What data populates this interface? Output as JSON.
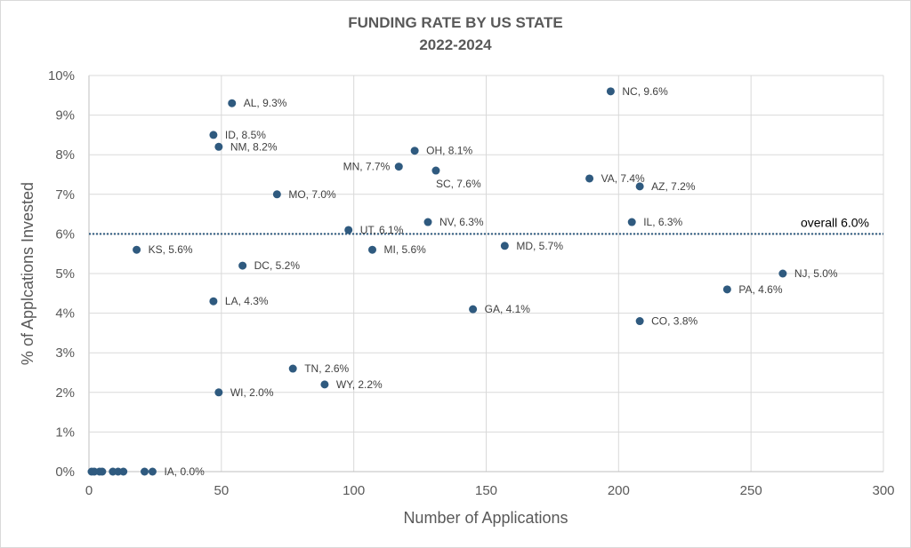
{
  "chart_data": {
    "type": "scatter",
    "title": "FUNDING RATE BY US STATE",
    "subtitle": "2022-2024",
    "xlabel": "Number of Applications",
    "ylabel": "% of Applcations Invested",
    "xlim": [
      0,
      300
    ],
    "ylim": [
      0,
      10
    ],
    "xticks": [
      "0",
      "50",
      "100",
      "150",
      "200",
      "250",
      "300"
    ],
    "yticks": [
      "0%",
      "1%",
      "2%",
      "3%",
      "4%",
      "5%",
      "6%",
      "7%",
      "8%",
      "9%",
      "10%"
    ],
    "grid": true,
    "color": "#2f5a7f",
    "reference_line": {
      "value": 6.0,
      "label": "overall 6.0%"
    },
    "points": [
      {
        "x": 54,
        "y": 9.3,
        "label": "AL, 9.3%"
      },
      {
        "x": 47,
        "y": 8.5,
        "label": "ID, 8.5%"
      },
      {
        "x": 49,
        "y": 8.2,
        "label": "NM, 8.2%"
      },
      {
        "x": 71,
        "y": 7.0,
        "label": "MO, 7.0%"
      },
      {
        "x": 18,
        "y": 5.6,
        "label": "KS, 5.6%"
      },
      {
        "x": 58,
        "y": 5.2,
        "label": "DC, 5.2%"
      },
      {
        "x": 47,
        "y": 4.3,
        "label": "LA, 4.3%"
      },
      {
        "x": 49,
        "y": 2.0,
        "label": "WI, 2.0%"
      },
      {
        "x": 77,
        "y": 2.6,
        "label": "TN, 2.6%"
      },
      {
        "x": 89,
        "y": 2.2,
        "label": "WY, 2.2%"
      },
      {
        "x": 98,
        "y": 6.1,
        "label": "UT, 6.1%"
      },
      {
        "x": 107,
        "y": 5.6,
        "label": "MI, 5.6%"
      },
      {
        "x": 117,
        "y": 7.7,
        "label": "MN, 7.7%",
        "pos": "left"
      },
      {
        "x": 123,
        "y": 8.1,
        "label": "OH, 8.1%"
      },
      {
        "x": 131,
        "y": 7.6,
        "label": "SC, 7.6%",
        "pos": "below"
      },
      {
        "x": 128,
        "y": 6.3,
        "label": "NV, 6.3%"
      },
      {
        "x": 145,
        "y": 4.1,
        "label": "GA, 4.1%"
      },
      {
        "x": 157,
        "y": 5.7,
        "label": "MD, 5.7%"
      },
      {
        "x": 189,
        "y": 7.4,
        "label": "VA, 7.4%"
      },
      {
        "x": 197,
        "y": 9.6,
        "label": "NC, 9.6%"
      },
      {
        "x": 208,
        "y": 7.2,
        "label": "AZ, 7.2%"
      },
      {
        "x": 205,
        "y": 6.3,
        "label": "IL, 6.3%"
      },
      {
        "x": 208,
        "y": 3.8,
        "label": "CO, 3.8%"
      },
      {
        "x": 241,
        "y": 4.6,
        "label": "PA, 4.6%"
      },
      {
        "x": 262,
        "y": 5.0,
        "label": "NJ, 5.0%"
      },
      {
        "x": 1,
        "y": 0
      },
      {
        "x": 2,
        "y": 0
      },
      {
        "x": 4,
        "y": 0
      },
      {
        "x": 5,
        "y": 0
      },
      {
        "x": 9,
        "y": 0
      },
      {
        "x": 11,
        "y": 0
      },
      {
        "x": 13,
        "y": 0
      },
      {
        "x": 21,
        "y": 0
      },
      {
        "x": 24,
        "y": 0,
        "label": "IA, 0.0%"
      }
    ]
  }
}
